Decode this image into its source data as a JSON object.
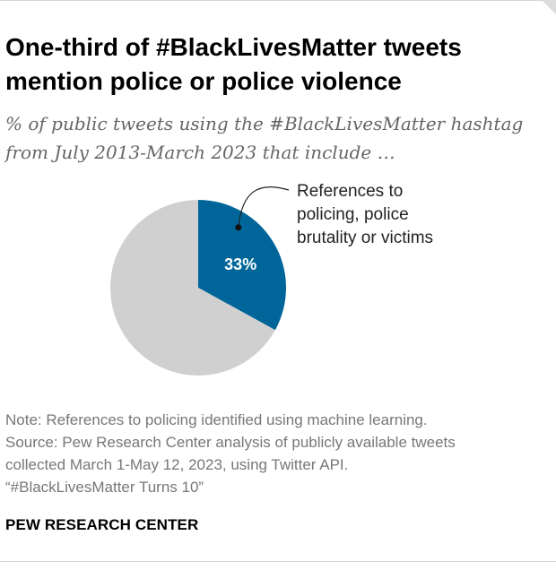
{
  "header": {
    "title": "One-third of #BlackLivesMatter tweets mention police or police violence",
    "subtitle": "% of public tweets using the #BlackLivesMatter hashtag from July 2013-March 2023 that include …"
  },
  "chart_data": {
    "type": "pie",
    "slices": [
      {
        "label": "References to policing, police brutality or victims",
        "label_lines": [
          "References to",
          "policing, police",
          "brutality or victims"
        ],
        "value": 33,
        "value_label": "33%",
        "color": "#006699"
      },
      {
        "label": "",
        "value": 67,
        "value_label": "",
        "color": "#d0d0d1"
      }
    ],
    "start_angle": 0,
    "direction": "clockwise",
    "title": "",
    "legend": "none"
  },
  "footer": {
    "note": "Note: References to policing identified using machine learning.",
    "source_lines": [
      "Source: Pew Research Center analysis of publicly available tweets",
      "collected March 1-May 12, 2023, using Twitter API.",
      "“#BlackLivesMatter Turns 10”"
    ],
    "brand": "PEW RESEARCH CENTER"
  },
  "colors": {
    "title": "#000000",
    "subtitle": "#666666",
    "note": "#777777",
    "accent": "#006699",
    "remainder": "#d0d0d1"
  }
}
